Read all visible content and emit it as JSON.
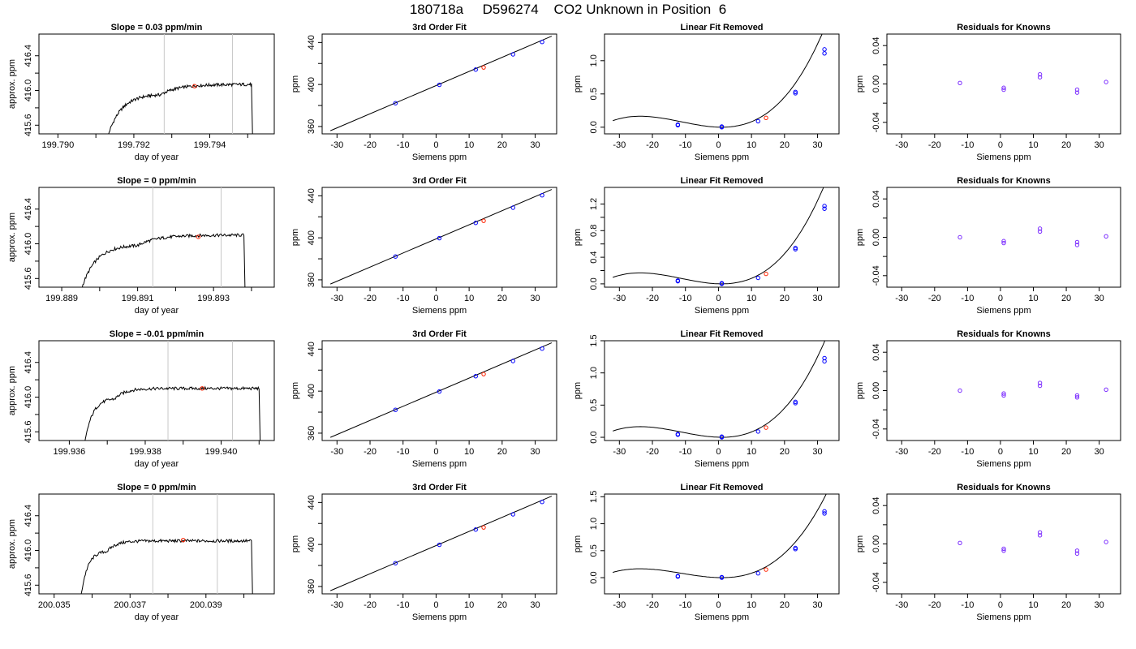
{
  "page_title": "180718a     D596274    CO2 Unknown in Position  6",
  "colors": {
    "trace": "#000000",
    "guide": "#c8c8c8",
    "known": "#0000ff",
    "unknown": "#ff2200",
    "residual": "#7b2cff"
  },
  "chart_data": [
    {
      "type": "line",
      "row": 1,
      "col": 1,
      "title": "Slope =  0.03  ppm/min",
      "xlabel": "day of year",
      "ylabel": "approx. ppm",
      "xlim": [
        199.7895,
        199.7957
      ],
      "ylim": [
        415.5,
        416.65
      ],
      "xticks": [
        199.79,
        199.791,
        199.792,
        199.793,
        199.794,
        199.795
      ],
      "xtick_labels": [
        "199.790",
        "",
        "199.792",
        "",
        "199.794",
        ""
      ],
      "yticks": [
        415.6,
        415.8,
        416.0,
        416.2,
        416.4
      ],
      "ytick_labels": [
        "415.6",
        "",
        "416.0",
        "",
        "416.4"
      ],
      "vlines": [
        199.7928,
        199.7946
      ],
      "trace": {
        "start": 199.7913,
        "rise_end": 199.7927,
        "plateau": 416.07,
        "drop": 199.7951,
        "base": 415.45
      },
      "point": {
        "x": 199.7936,
        "y": 416.05
      }
    },
    {
      "type": "line",
      "row": 2,
      "col": 1,
      "title": "Slope =  0  ppm/min",
      "xlabel": "day of year",
      "ylabel": "approx. ppm",
      "xlim": [
        199.8884,
        199.8946
      ],
      "ylim": [
        415.5,
        416.65
      ],
      "xticks": [
        199.889,
        199.89,
        199.891,
        199.892,
        199.893,
        199.894
      ],
      "xtick_labels": [
        "199.889",
        "",
        "199.891",
        "",
        "199.893",
        ""
      ],
      "yticks": [
        415.6,
        415.8,
        416.0,
        416.2,
        416.4
      ],
      "ytick_labels": [
        "415.6",
        "",
        "416.0",
        "",
        "416.4"
      ],
      "vlines": [
        199.8914,
        199.8932
      ],
      "trace": {
        "start": 199.8895,
        "rise_end": 199.891,
        "plateau": 416.1,
        "drop": 199.8938,
        "base": 415.45
      },
      "point": {
        "x": 199.8926,
        "y": 416.08
      }
    },
    {
      "type": "line",
      "row": 3,
      "col": 1,
      "title": "Slope =  -0.01  ppm/min",
      "xlabel": "day of year",
      "ylabel": "approx. ppm",
      "xlim": [
        199.9352,
        199.9414
      ],
      "ylim": [
        415.5,
        416.65
      ],
      "xticks": [
        199.936,
        199.937,
        199.938,
        199.939,
        199.94,
        199.941
      ],
      "xtick_labels": [
        "199.936",
        "",
        "199.938",
        "",
        "199.940",
        ""
      ],
      "yticks": [
        415.6,
        415.8,
        416.0,
        416.2,
        416.4
      ],
      "ytick_labels": [
        "415.6",
        "",
        "416.0",
        "",
        "416.4"
      ],
      "vlines": [
        199.9386,
        199.9403
      ],
      "trace": {
        "start": 199.9364,
        "rise_end": 199.9372,
        "plateau": 416.1,
        "drop": 199.941,
        "base": 415.45
      },
      "point": {
        "x": 199.9395,
        "y": 416.1
      }
    },
    {
      "type": "line",
      "row": 4,
      "col": 1,
      "title": "Slope =  0  ppm/min",
      "xlabel": "day of year",
      "ylabel": "approx. ppm",
      "xlim": [
        200.0346,
        200.0408
      ],
      "ylim": [
        415.5,
        416.65
      ],
      "xticks": [
        200.035,
        200.036,
        200.037,
        200.038,
        200.039,
        200.04
      ],
      "xtick_labels": [
        "200.035",
        "",
        "200.037",
        "",
        "200.039",
        ""
      ],
      "yticks": [
        415.6,
        415.8,
        416.0,
        416.2,
        416.4
      ],
      "ytick_labels": [
        "415.6",
        "",
        "416.0",
        "",
        "416.4"
      ],
      "vlines": [
        200.0376,
        200.0393
      ],
      "trace": {
        "start": 200.0357,
        "rise_end": 200.0364,
        "plateau": 416.11,
        "drop": 200.0402,
        "base": 415.45
      },
      "point": {
        "x": 200.0384,
        "y": 416.12
      }
    },
    {
      "type": "scatter",
      "row": 1,
      "col": 2,
      "title": "3rd Order Fit",
      "xlabel": "Siemens ppm",
      "ylabel": "ppm",
      "xlim": [
        -34.5,
        36.5
      ],
      "ylim": [
        353,
        448
      ],
      "xticks": [
        -30,
        -20,
        -10,
        0,
        10,
        20,
        30
      ],
      "xtick_labels": [
        "-30",
        "-20",
        "-10",
        "0",
        "10",
        "20",
        "30"
      ],
      "yticks": [
        360,
        380,
        400,
        420,
        440
      ],
      "ytick_labels": [
        "360",
        "",
        "400",
        "",
        "440"
      ],
      "line": {
        "x1": -32,
        "y1": 356,
        "x2": 35,
        "y2": 446
      },
      "knowns": [
        [
          -12.3,
          382.2
        ],
        [
          1.0,
          399.7
        ],
        [
          12.0,
          414.2
        ],
        [
          23.3,
          428.7
        ],
        [
          32.1,
          440.5
        ]
      ],
      "unknown": [
        [
          14.4,
          416.2
        ]
      ]
    },
    {
      "type": "scatter",
      "row": 2,
      "col": 2,
      "title": "3rd Order Fit",
      "xlabel": "Siemens ppm",
      "ylabel": "ppm",
      "xlim": [
        -34.5,
        36.5
      ],
      "ylim": [
        353,
        448
      ],
      "xticks": [
        -30,
        -20,
        -10,
        0,
        10,
        20,
        30
      ],
      "xtick_labels": [
        "-30",
        "-20",
        "-10",
        "0",
        "10",
        "20",
        "30"
      ],
      "yticks": [
        360,
        380,
        400,
        420,
        440
      ],
      "ytick_labels": [
        "360",
        "",
        "400",
        "",
        "440"
      ],
      "line": {
        "x1": -32,
        "y1": 356,
        "x2": 35,
        "y2": 446
      },
      "knowns": [
        [
          -12.3,
          382.2
        ],
        [
          1.0,
          399.7
        ],
        [
          12.0,
          414.2
        ],
        [
          23.3,
          428.7
        ],
        [
          32.1,
          440.5
        ]
      ],
      "unknown": [
        [
          14.4,
          416.2
        ]
      ]
    },
    {
      "type": "scatter",
      "row": 3,
      "col": 2,
      "title": "3rd Order Fit",
      "xlabel": "Siemens ppm",
      "ylabel": "ppm",
      "xlim": [
        -34.5,
        36.5
      ],
      "ylim": [
        353,
        448
      ],
      "xticks": [
        -30,
        -20,
        -10,
        0,
        10,
        20,
        30
      ],
      "xtick_labels": [
        "-30",
        "-20",
        "-10",
        "0",
        "10",
        "20",
        "30"
      ],
      "yticks": [
        360,
        380,
        400,
        420,
        440
      ],
      "ytick_labels": [
        "360",
        "",
        "400",
        "",
        "440"
      ],
      "line": {
        "x1": -32,
        "y1": 356,
        "x2": 35,
        "y2": 446
      },
      "knowns": [
        [
          -12.3,
          382.2
        ],
        [
          1.0,
          399.7
        ],
        [
          12.0,
          414.2
        ],
        [
          23.3,
          428.7
        ],
        [
          32.1,
          440.5
        ]
      ],
      "unknown": [
        [
          14.4,
          416.2
        ]
      ]
    },
    {
      "type": "scatter",
      "row": 4,
      "col": 2,
      "title": "3rd Order Fit",
      "xlabel": "Siemens ppm",
      "ylabel": "ppm",
      "xlim": [
        -34.5,
        36.5
      ],
      "ylim": [
        353,
        448
      ],
      "xticks": [
        -30,
        -20,
        -10,
        0,
        10,
        20,
        30
      ],
      "xtick_labels": [
        "-30",
        "-20",
        "-10",
        "0",
        "10",
        "20",
        "30"
      ],
      "yticks": [
        360,
        380,
        400,
        420,
        440
      ],
      "ytick_labels": [
        "360",
        "",
        "400",
        "",
        "440"
      ],
      "line": {
        "x1": -32,
        "y1": 356,
        "x2": 35,
        "y2": 446
      },
      "knowns": [
        [
          -12.3,
          382.2
        ],
        [
          1.0,
          399.7
        ],
        [
          12.0,
          414.2
        ],
        [
          23.3,
          428.7
        ],
        [
          32.1,
          440.5
        ]
      ],
      "unknown": [
        [
          14.4,
          416.2
        ]
      ]
    },
    {
      "type": "scatter",
      "row": 1,
      "col": 3,
      "title": "Linear Fit Removed",
      "xlabel": "Siemens ppm",
      "ylabel": "ppm",
      "xlim": [
        -34.5,
        36.5
      ],
      "ylim": [
        -0.1,
        1.4
      ],
      "xticks": [
        -30,
        -20,
        -10,
        0,
        10,
        20,
        30
      ],
      "xtick_labels": [
        "-30",
        "-20",
        "-10",
        "0",
        "10",
        "20",
        "30"
      ],
      "yticks": [
        0.0,
        0.5,
        1.0
      ],
      "ytick_labels": [
        "0.0",
        "0.5",
        "1.0"
      ],
      "curve": {
        "x0": -32,
        "x1": 35,
        "cubic": [
          0.01,
          0.00082,
          2.26e-05,
          1.4e-08
        ]
      },
      "knowns": [
        [
          -12.3,
          0.03
        ],
        [
          -12.3,
          0.04
        ],
        [
          1.0,
          0.0
        ],
        [
          1.0,
          0.01
        ],
        [
          12.0,
          0.09
        ],
        [
          23.3,
          0.51
        ],
        [
          23.3,
          0.53
        ],
        [
          32.1,
          1.11
        ],
        [
          32.1,
          1.17
        ]
      ],
      "unknown": [
        [
          14.4,
          0.14
        ]
      ]
    },
    {
      "type": "scatter",
      "row": 2,
      "col": 3,
      "title": "Linear Fit Removed",
      "xlabel": "Siemens ppm",
      "ylabel": "ppm",
      "xlim": [
        -34.5,
        36.5
      ],
      "ylim": [
        -0.05,
        1.45
      ],
      "xticks": [
        -30,
        -20,
        -10,
        0,
        10,
        20,
        30
      ],
      "xtick_labels": [
        "-30",
        "-20",
        "-10",
        "0",
        "10",
        "20",
        "30"
      ],
      "yticks": [
        0.0,
        0.2,
        0.4,
        0.6,
        0.8,
        1.0,
        1.2
      ],
      "ytick_labels": [
        "0.0",
        "",
        "0.4",
        "",
        "0.8",
        "",
        "1.2"
      ],
      "curve": {
        "x0": -32,
        "x1": 35,
        "cubic": [
          0.01,
          0.00082,
          2.26e-05,
          1.4e-08
        ]
      },
      "knowns": [
        [
          -12.3,
          0.04
        ],
        [
          -12.3,
          0.05
        ],
        [
          1.0,
          0.0
        ],
        [
          1.0,
          0.01
        ],
        [
          12.0,
          0.09
        ],
        [
          23.3,
          0.52
        ],
        [
          23.3,
          0.54
        ],
        [
          32.1,
          1.13
        ],
        [
          32.1,
          1.17
        ]
      ],
      "unknown": [
        [
          14.4,
          0.15
        ]
      ]
    },
    {
      "type": "scatter",
      "row": 3,
      "col": 3,
      "title": "Linear Fit Removed",
      "xlabel": "Siemens ppm",
      "ylabel": "ppm",
      "xlim": [
        -34.5,
        36.5
      ],
      "ylim": [
        -0.05,
        1.5
      ],
      "xticks": [
        -30,
        -20,
        -10,
        0,
        10,
        20,
        30
      ],
      "xtick_labels": [
        "-30",
        "-20",
        "-10",
        "0",
        "10",
        "20",
        "30"
      ],
      "yticks": [
        0.0,
        0.5,
        1.0,
        1.5
      ],
      "ytick_labels": [
        "0.0",
        "0.5",
        "1.0",
        "1.5"
      ],
      "curve": {
        "x0": -32,
        "x1": 35,
        "cubic": [
          0.01,
          0.00082,
          2.26e-05,
          1.4e-08
        ]
      },
      "knowns": [
        [
          -12.3,
          0.04
        ],
        [
          -12.3,
          0.05
        ],
        [
          1.0,
          0.0
        ],
        [
          1.0,
          0.01
        ],
        [
          12.0,
          0.09
        ],
        [
          23.3,
          0.53
        ],
        [
          23.3,
          0.55
        ],
        [
          32.1,
          1.18
        ],
        [
          32.1,
          1.23
        ]
      ],
      "unknown": [
        [
          14.4,
          0.15
        ]
      ]
    },
    {
      "type": "scatter",
      "row": 4,
      "col": 3,
      "title": "Linear Fit Removed",
      "xlabel": "Siemens ppm",
      "ylabel": "ppm",
      "xlim": [
        -34.5,
        36.5
      ],
      "ylim": [
        -0.3,
        1.55
      ],
      "xticks": [
        -30,
        -20,
        -10,
        0,
        10,
        20,
        30
      ],
      "xtick_labels": [
        "-30",
        "-20",
        "-10",
        "0",
        "10",
        "20",
        "30"
      ],
      "yticks": [
        0.0,
        0.5,
        1.0,
        1.5
      ],
      "ytick_labels": [
        "0.0",
        "0.5",
        "1.0",
        "1.5"
      ],
      "curve": {
        "x0": -32,
        "x1": 35,
        "cubic": [
          0.01,
          0.00082,
          2.26e-05,
          1.4e-08
        ]
      },
      "knowns": [
        [
          -12.3,
          0.02
        ],
        [
          -12.3,
          0.03
        ],
        [
          1.0,
          0.0
        ],
        [
          1.0,
          0.01
        ],
        [
          12.0,
          0.08
        ],
        [
          23.3,
          0.53
        ],
        [
          23.3,
          0.55
        ],
        [
          32.1,
          1.19
        ],
        [
          32.1,
          1.23
        ]
      ],
      "unknown": [
        [
          14.4,
          0.15
        ]
      ]
    },
    {
      "type": "scatter",
      "row": 1,
      "col": 4,
      "title": "Residuals for Knowns",
      "xlabel": "Siemens ppm",
      "ylabel": "ppm",
      "xlim": [
        -34.5,
        36.5
      ],
      "ylim": [
        -0.052,
        0.052
      ],
      "xticks": [
        -30,
        -20,
        -10,
        0,
        10,
        20,
        30
      ],
      "xtick_labels": [
        "-30",
        "-20",
        "-10",
        "0",
        "10",
        "20",
        "30"
      ],
      "yticks": [
        -0.04,
        -0.02,
        0.0,
        0.02,
        0.04
      ],
      "ytick_labels": [
        "-0.04",
        "",
        "0.00",
        "",
        "0.04"
      ],
      "residuals": [
        [
          -12.3,
          0.001
        ],
        [
          1.0,
          -0.004
        ],
        [
          1.0,
          -0.006
        ],
        [
          12.0,
          0.007
        ],
        [
          12.0,
          0.01
        ],
        [
          23.3,
          -0.006
        ],
        [
          23.3,
          -0.009
        ],
        [
          32.1,
          0.002
        ]
      ]
    },
    {
      "type": "scatter",
      "row": 2,
      "col": 4,
      "title": "Residuals for Knowns",
      "xlabel": "Siemens ppm",
      "ylabel": "ppm",
      "xlim": [
        -34.5,
        36.5
      ],
      "ylim": [
        -0.052,
        0.052
      ],
      "xticks": [
        -30,
        -20,
        -10,
        0,
        10,
        20,
        30
      ],
      "xtick_labels": [
        "-30",
        "-20",
        "-10",
        "0",
        "10",
        "20",
        "30"
      ],
      "yticks": [
        -0.04,
        -0.02,
        0.0,
        0.02,
        0.04
      ],
      "ytick_labels": [
        "-0.04",
        "",
        "0.00",
        "",
        "0.04"
      ],
      "residuals": [
        [
          -12.3,
          0.0
        ],
        [
          1.0,
          -0.004
        ],
        [
          1.0,
          -0.006
        ],
        [
          12.0,
          0.006
        ],
        [
          12.0,
          0.009
        ],
        [
          23.3,
          -0.005
        ],
        [
          23.3,
          -0.008
        ],
        [
          32.1,
          0.001
        ]
      ]
    },
    {
      "type": "scatter",
      "row": 3,
      "col": 4,
      "title": "Residuals for Knowns",
      "xlabel": "Siemens ppm",
      "ylabel": "ppm",
      "xlim": [
        -34.5,
        36.5
      ],
      "ylim": [
        -0.052,
        0.052
      ],
      "xticks": [
        -30,
        -20,
        -10,
        0,
        10,
        20,
        30
      ],
      "xtick_labels": [
        "-30",
        "-20",
        "-10",
        "0",
        "10",
        "20",
        "30"
      ],
      "yticks": [
        -0.04,
        -0.02,
        0.0,
        0.02,
        0.04
      ],
      "ytick_labels": [
        "-0.04",
        "",
        "0.00",
        "",
        "0.04"
      ],
      "residuals": [
        [
          -12.3,
          0.0
        ],
        [
          1.0,
          -0.003
        ],
        [
          1.0,
          -0.005
        ],
        [
          12.0,
          0.005
        ],
        [
          12.0,
          0.008
        ],
        [
          23.3,
          -0.005
        ],
        [
          23.3,
          -0.007
        ],
        [
          32.1,
          0.001
        ]
      ]
    },
    {
      "type": "scatter",
      "row": 4,
      "col": 4,
      "title": "Residuals for Knowns",
      "xlabel": "Siemens ppm",
      "ylabel": "ppm",
      "xlim": [
        -34.5,
        36.5
      ],
      "ylim": [
        -0.052,
        0.052
      ],
      "xticks": [
        -30,
        -20,
        -10,
        0,
        10,
        20,
        30
      ],
      "xtick_labels": [
        "-30",
        "-20",
        "-10",
        "0",
        "10",
        "20",
        "30"
      ],
      "yticks": [
        -0.04,
        -0.02,
        0.0,
        0.02,
        0.04
      ],
      "ytick_labels": [
        "-0.04",
        "",
        "0.00",
        "",
        "0.04"
      ],
      "residuals": [
        [
          -12.3,
          0.001
        ],
        [
          1.0,
          -0.005
        ],
        [
          1.0,
          -0.007
        ],
        [
          12.0,
          0.009
        ],
        [
          12.0,
          0.012
        ],
        [
          23.3,
          -0.007
        ],
        [
          23.3,
          -0.01
        ],
        [
          32.1,
          0.002
        ]
      ]
    }
  ]
}
